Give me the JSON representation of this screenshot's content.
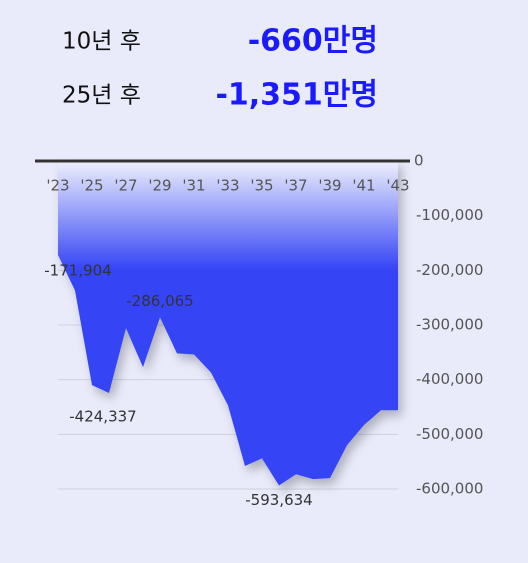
{
  "header": {
    "rows": [
      {
        "label": "10년 후",
        "value": "-660만명"
      },
      {
        "label": "25년 후",
        "value": "-1,351만명"
      }
    ]
  },
  "chart_data": {
    "type": "area",
    "color": "#3545f5",
    "categories": [
      "'23",
      null,
      "'25",
      null,
      "'27",
      null,
      "'29",
      null,
      "'31",
      null,
      "'33",
      null,
      "'35",
      null,
      "'37",
      null,
      "'39",
      null,
      "'41",
      null,
      "'43"
    ],
    "values": [
      -171904,
      -237000,
      -410000,
      -424337,
      -306000,
      -377000,
      -286065,
      -352000,
      -354000,
      -387000,
      -447000,
      -558000,
      -544000,
      -593634,
      -573000,
      -582000,
      -580000,
      -520000,
      -483000,
      -456000,
      -456000
    ],
    "value_labels": [
      "-171,904",
      null,
      null,
      "-424,337",
      null,
      null,
      "-286,065",
      null,
      null,
      null,
      null,
      null,
      null,
      "-593,634",
      null,
      null,
      null,
      null,
      null,
      null,
      null
    ],
    "ylim": [
      -600000,
      0
    ],
    "yticks": [
      0,
      {
        "value": -100000,
        "label": "-100,000"
      },
      {
        "value": -200000,
        "label": "-200,000"
      },
      {
        "value": -300000,
        "label": "-300,000"
      },
      {
        "value": -400000,
        "label": "-400,000"
      },
      {
        "value": -500000,
        "label": "-500,000"
      },
      {
        "value": -600000,
        "label": "-600,000"
      }
    ],
    "grid": true
  }
}
